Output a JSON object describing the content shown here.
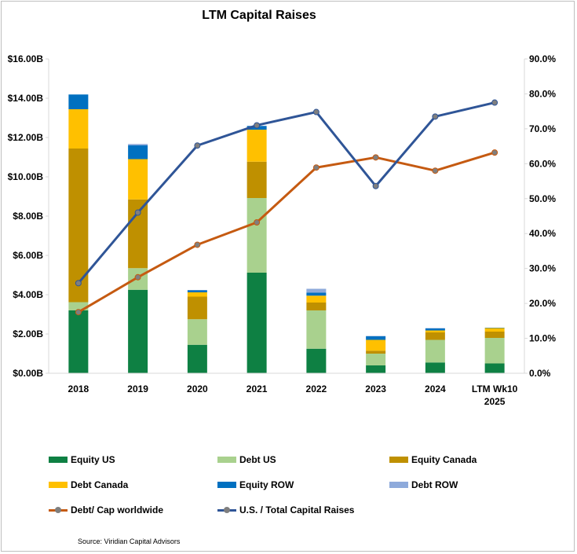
{
  "chart_data": {
    "type": "bar",
    "stacked": true,
    "title": "LTM Capital Raises",
    "categories": [
      "2018",
      "2019",
      "2020",
      "2021",
      "2022",
      "2023",
      "2024",
      "LTM Wk10\n2025"
    ],
    "y_left": {
      "ylim": [
        0,
        16
      ],
      "ticks": [
        0,
        2,
        4,
        6,
        8,
        10,
        12,
        14,
        16
      ],
      "tick_labels": [
        "$0.00B",
        "$2.00B",
        "$4.00B",
        "$6.00B",
        "$8.00B",
        "$10.00B",
        "$12.00B",
        "$14.00B",
        "$16.00B"
      ]
    },
    "y_right": {
      "ylim": [
        0,
        90
      ],
      "ticks": [
        0,
        10,
        20,
        30,
        40,
        50,
        60,
        70,
        80,
        90
      ],
      "tick_labels": [
        "0.0%",
        "10.0%",
        "20.0%",
        "30.0%",
        "40.0%",
        "50.0%",
        "60.0%",
        "70.0%",
        "80.0%",
        "90.0%"
      ]
    },
    "series": [
      {
        "name": "Equity US",
        "kind": "bar",
        "axis": "left",
        "color": "#0e8043",
        "values": [
          3.2,
          4.25,
          1.45,
          5.12,
          1.25,
          0.4,
          0.55,
          0.5
        ]
      },
      {
        "name": "Debt US",
        "kind": "bar",
        "axis": "left",
        "color": "#a9d18e",
        "values": [
          0.42,
          1.1,
          1.3,
          3.8,
          1.95,
          0.6,
          1.15,
          1.3
        ]
      },
      {
        "name": "Equity Canada",
        "kind": "bar",
        "axis": "left",
        "color": "#bf9000",
        "values": [
          7.82,
          3.5,
          1.15,
          1.85,
          0.4,
          0.15,
          0.38,
          0.32
        ]
      },
      {
        "name": "Debt Canada",
        "kind": "bar",
        "axis": "left",
        "color": "#ffc000",
        "values": [
          2.0,
          2.05,
          0.22,
          1.63,
          0.35,
          0.55,
          0.1,
          0.18
        ]
      },
      {
        "name": "Equity ROW",
        "kind": "bar",
        "axis": "left",
        "color": "#0070c0",
        "values": [
          0.75,
          0.7,
          0.1,
          0.18,
          0.15,
          0.18,
          0.1,
          0.02
        ]
      },
      {
        "name": "Debt ROW",
        "kind": "bar",
        "axis": "left",
        "color": "#8eaadb",
        "values": [
          0.0,
          0.07,
          0.02,
          0.02,
          0.2,
          0.02,
          0.02,
          0.0
        ]
      },
      {
        "name": "Debt/ Cap worldwide",
        "kind": "line",
        "axis": "right",
        "color": "#c55a11",
        "values": [
          17.5,
          27.5,
          36.8,
          43.2,
          58.9,
          61.8,
          58.0,
          63.2
        ]
      },
      {
        "name": "U.S. / Total Capital Raises",
        "kind": "line",
        "axis": "right",
        "color": "#2f5597",
        "values": [
          25.8,
          46.0,
          65.2,
          71.0,
          74.8,
          53.6,
          73.5,
          77.5
        ]
      }
    ],
    "legend_position": "bottom",
    "grid": false
  },
  "legend": [
    {
      "label": "Equity US",
      "color": "#0e8043",
      "type": "bar"
    },
    {
      "label": "Debt US",
      "color": "#a9d18e",
      "type": "bar"
    },
    {
      "label": "Equity Canada",
      "color": "#bf9000",
      "type": "bar"
    },
    {
      "label": "Debt Canada",
      "color": "#ffc000",
      "type": "bar"
    },
    {
      "label": "Equity ROW",
      "color": "#0070c0",
      "type": "bar"
    },
    {
      "label": "Debt ROW",
      "color": "#8eaadb",
      "type": "bar"
    },
    {
      "label": "Debt/ Cap worldwide",
      "color": "#c55a11",
      "type": "line"
    },
    {
      "label": "U.S. / Total Capital Raises",
      "color": "#2f5597",
      "type": "line"
    }
  ],
  "source": "Source: Viridian Capital Advisors"
}
